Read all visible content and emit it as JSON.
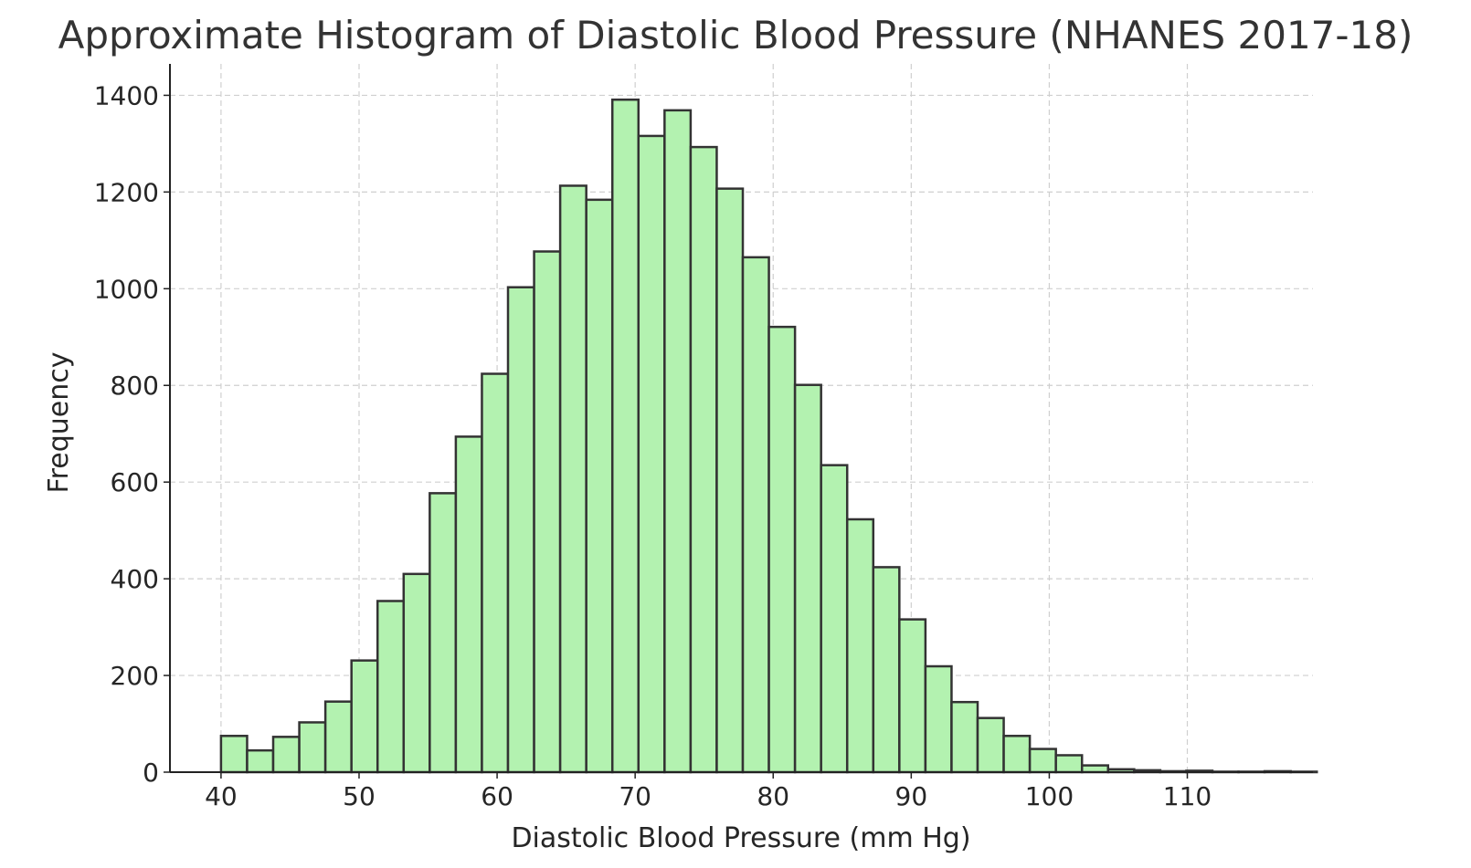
{
  "chart_data": {
    "type": "bar",
    "title": "Approximate Histogram of Diastolic Blood Pressure (NHANES 2017-18)",
    "xlabel": "Diastolic Blood Pressure (mm Hg)",
    "ylabel": "Frequency",
    "xlim": [
      36.3,
      119.1
    ],
    "ylim": [
      0,
      1465
    ],
    "xticks": [
      40,
      50,
      60,
      70,
      80,
      90,
      100,
      110
    ],
    "yticks": [
      0,
      200,
      400,
      600,
      800,
      1000,
      1200,
      1400
    ],
    "bin_width": 1.89,
    "bin_start": 40,
    "grid": true,
    "colors": {
      "bar_fill": "#b3f2b0",
      "bar_edge": "#333333",
      "grid": "#cfcfcf",
      "axis": "#222222",
      "title": "#333333"
    },
    "values": [
      75,
      45,
      73,
      103,
      146,
      231,
      354,
      410,
      577,
      694,
      824,
      1003,
      1077,
      1213,
      1184,
      1391,
      1316,
      1369,
      1293,
      1207,
      1065,
      921,
      801,
      635,
      523,
      424,
      316,
      219,
      145,
      112,
      75,
      48,
      35,
      14,
      6,
      4,
      2,
      3,
      1,
      1,
      2,
      1
    ]
  }
}
